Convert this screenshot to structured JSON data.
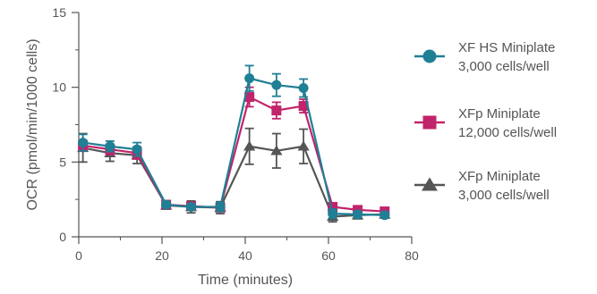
{
  "chart_data": {
    "type": "line",
    "title": "",
    "xlabel": "Time (minutes)",
    "ylabel": "OCR  (pmol/min/1000 cells)",
    "xlim": [
      0,
      80
    ],
    "ylim": [
      0,
      15
    ],
    "x_ticks": [
      0,
      20,
      40,
      60,
      80
    ],
    "y_ticks": [
      0,
      5,
      10,
      15
    ],
    "x_tick_labels": [
      "0",
      "20",
      "40",
      "60",
      "80"
    ],
    "y_tick_labels": [
      "0",
      "5",
      "10",
      "15"
    ],
    "grid": false,
    "legend_position": "right",
    "x": [
      1,
      7.5,
      14,
      21,
      27,
      34,
      41,
      47.5,
      54,
      61,
      67,
      73.5
    ],
    "series": [
      {
        "name": "XF HS Miniplate",
        "name_line2": "3,000 cells/well",
        "color": "#1f7f95",
        "marker": "circle",
        "values": [
          6.3,
          6.05,
          5.85,
          2.15,
          2.0,
          2.0,
          10.6,
          10.15,
          9.95,
          1.55,
          1.5,
          1.45
        ],
        "errors": [
          0.55,
          0.35,
          0.45,
          0.2,
          0.2,
          0.3,
          0.85,
          0.75,
          0.6,
          0.3,
          0.2,
          0.2
        ]
      },
      {
        "name": "XFp Miniplate",
        "name_line2": "12,000 cells/well",
        "color": "#c1246b",
        "marker": "square",
        "values": [
          6.1,
          5.85,
          5.6,
          2.15,
          2.05,
          1.95,
          9.35,
          8.45,
          8.75,
          2.0,
          1.8,
          1.7
        ],
        "errors": [
          0.35,
          0.35,
          0.4,
          0.15,
          0.2,
          0.25,
          0.65,
          0.55,
          0.45,
          0.2,
          0.15,
          0.15
        ]
      },
      {
        "name": "XFp Miniplate",
        "name_line2": "3,000 cells/well",
        "color": "#555555",
        "marker": "triangle",
        "values": [
          5.95,
          5.6,
          5.45,
          2.1,
          2.0,
          1.95,
          6.05,
          5.75,
          6.05,
          1.35,
          1.45,
          1.5
        ],
        "errors": [
          0.95,
          0.55,
          0.55,
          0.25,
          0.4,
          0.4,
          1.2,
          1.15,
          1.15,
          0.35,
          0.25,
          0.2
        ]
      }
    ]
  }
}
